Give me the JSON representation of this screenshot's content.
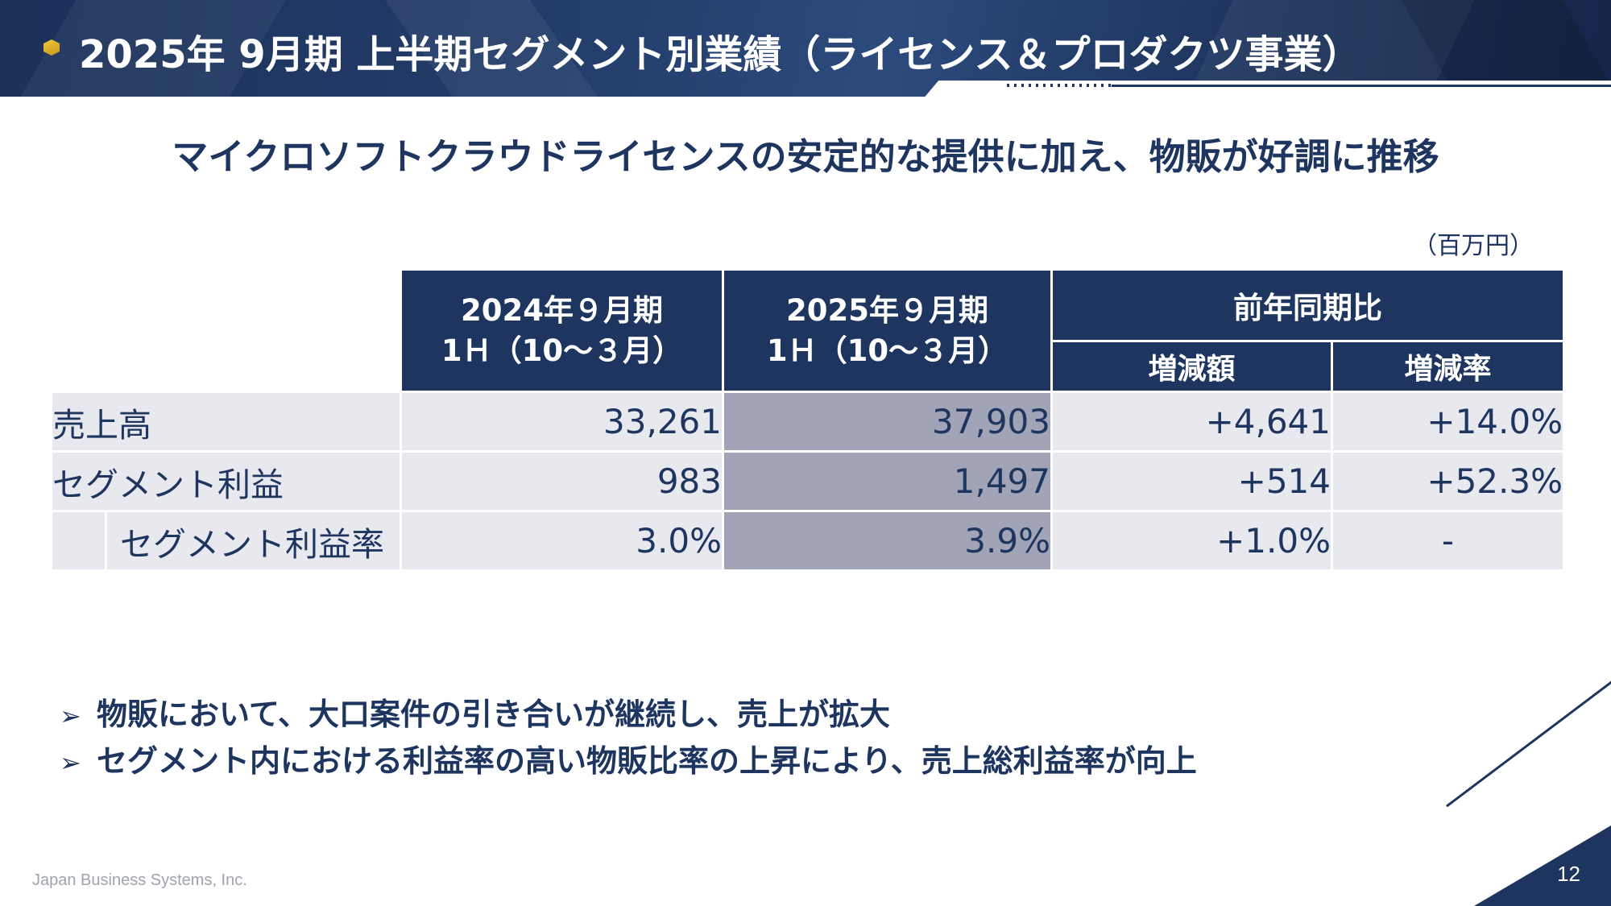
{
  "header": {
    "title": "2025年 9月期 上半期セグメント別業績（ライセンス＆プロダクツ事業）"
  },
  "subtitle": "マイクロソフトクラウドライセンスの安定的な提供に加え、物販が好調に推移",
  "unit": "（百万円）",
  "table": {
    "col_prev_line1": "2024年９月期",
    "col_prev_line2": "1Ｈ（10～３月）",
    "col_curr_line1": "2025年９月期",
    "col_curr_line2": "1Ｈ（10～３月）",
    "col_yoy": "前年同期比",
    "col_change": "増減額",
    "col_rate": "増減率",
    "rows": [
      {
        "label": "売上高",
        "prev": "33,261",
        "curr": "37,903",
        "change": "+4,641",
        "rate": "+14.0%"
      },
      {
        "label": "セグメント利益",
        "prev": "983",
        "curr": "1,497",
        "change": "+514",
        "rate": "+52.3%"
      },
      {
        "label": "セグメント利益率",
        "prev": "3.0%",
        "curr": "3.9%",
        "change": "+1.0%",
        "rate": "-"
      }
    ]
  },
  "bullets": [
    "物販において、大口案件の引き合いが継続し、売上が拡大",
    "セグメント内における利益率の高い物販比率の上昇により、売上総利益率が向上"
  ],
  "footer": {
    "company": "Japan Business Systems, Inc.",
    "page_number": "12"
  },
  "colors": {
    "navy": "#1e3560",
    "row_bg": "#e8e9ee",
    "highlight": "#a1a4b6",
    "gold": "#e0b22d"
  }
}
